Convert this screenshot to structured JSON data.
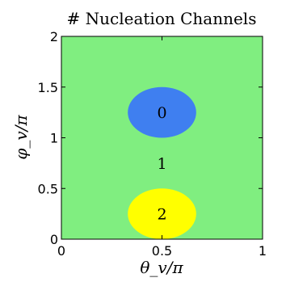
{
  "chart_data": {
    "type": "heatmap",
    "title": "# Nucleation Channels",
    "xlabel": "θ_v/π",
    "ylabel": "φ_v/π",
    "xlim": [
      0,
      1
    ],
    "ylim": [
      0,
      2
    ],
    "x_ticks": [
      "0",
      "0.5",
      "1"
    ],
    "y_ticks": [
      "0",
      "0.5",
      "1",
      "1.5",
      "2"
    ],
    "grid": false,
    "background_region": {
      "label": "1",
      "color": "#80ee80",
      "label_x": 0.5,
      "label_y": 0.75
    },
    "regions": [
      {
        "label": "0",
        "color": "#3f7ff0",
        "center": [
          0.5,
          1.25
        ],
        "radius_x": 0.17,
        "radius_y": 0.25
      },
      {
        "label": "2",
        "color": "#ffff00",
        "center": [
          0.5,
          0.25
        ],
        "radius_x": 0.17,
        "radius_y": 0.25
      }
    ]
  }
}
